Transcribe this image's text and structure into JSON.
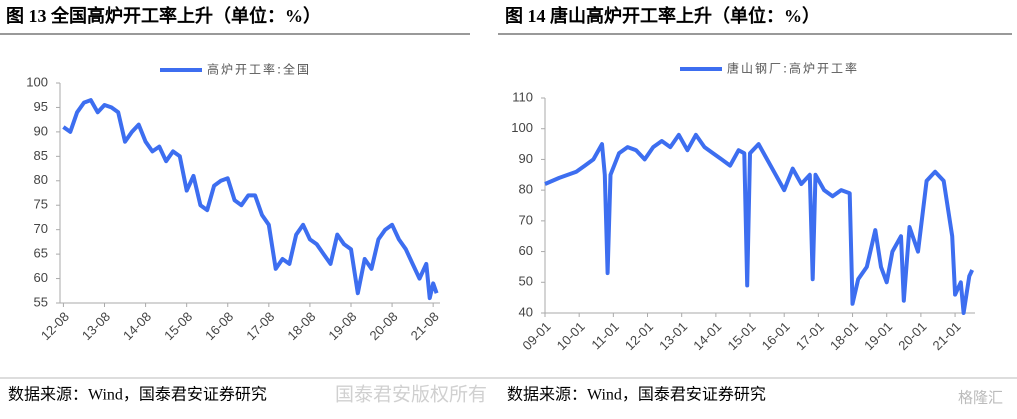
{
  "chart_data": [
    {
      "type": "line",
      "title": "图 13 全国高炉开工率上升（单位：%）",
      "source": "数据来源：Wind，国泰君安证券研究",
      "xlim": [
        "12-07",
        "21-10"
      ],
      "xticks": [
        "12-08",
        "13-08",
        "14-08",
        "15-08",
        "16-08",
        "17-08",
        "18-08",
        "19-08",
        "20-08",
        "21-08"
      ],
      "ylim": [
        55,
        100
      ],
      "yticks": [
        55,
        60,
        65,
        70,
        75,
        80,
        85,
        90,
        95,
        100
      ],
      "legend": "top",
      "series": [
        {
          "name": "高炉开工率:全国",
          "color": "#3d6ef0",
          "x": [
            "12-08",
            "12-10",
            "12-12",
            "13-02",
            "13-04",
            "13-06",
            "13-08",
            "13-10",
            "13-12",
            "14-02",
            "14-04",
            "14-06",
            "14-08",
            "14-10",
            "14-12",
            "15-02",
            "15-04",
            "15-06",
            "15-08",
            "15-10",
            "15-12",
            "16-02",
            "16-04",
            "16-06",
            "16-08",
            "16-10",
            "16-12",
            "17-02",
            "17-04",
            "17-06",
            "17-08",
            "17-10",
            "17-12",
            "18-02",
            "18-04",
            "18-06",
            "18-08",
            "18-10",
            "18-12",
            "19-02",
            "19-04",
            "19-06",
            "19-08",
            "19-10",
            "19-12",
            "20-02",
            "20-04",
            "20-06",
            "20-08",
            "20-10",
            "20-12",
            "21-02",
            "21-04",
            "21-06",
            "21-07",
            "21-08",
            "21-09"
          ],
          "values": [
            91,
            90,
            94,
            96,
            96.5,
            94,
            95.5,
            95,
            94,
            88,
            90,
            91.5,
            88,
            86,
            87,
            84,
            86,
            85,
            78,
            81,
            75,
            74,
            79,
            80,
            80.5,
            76,
            75,
            77,
            77,
            73,
            71,
            62,
            64,
            63,
            69,
            71,
            68,
            67,
            65,
            63,
            69,
            67,
            66,
            57,
            64,
            62,
            68,
            70,
            71,
            68,
            66,
            63,
            60,
            63,
            56,
            59,
            57
          ]
        }
      ]
    },
    {
      "type": "line",
      "title": "图 14 唐山高炉开工率上升（单位：%）",
      "source": "数据来源：Wind，国泰君安证券研究",
      "xlim": [
        "09-01",
        "21-08"
      ],
      "xticks": [
        "09-01",
        "10-01",
        "11-01",
        "12-01",
        "13-01",
        "14-01",
        "15-01",
        "16-01",
        "17-01",
        "18-01",
        "19-01",
        "20-01",
        "21-01"
      ],
      "ylim": [
        40,
        110
      ],
      "yticks": [
        40,
        50,
        60,
        70,
        80,
        90,
        100,
        110
      ],
      "legend": "top",
      "series": [
        {
          "name": "唐山钢厂:高炉开工率",
          "color": "#3d6ef0",
          "x": [
            "09-01",
            "09-06",
            "09-12",
            "10-03",
            "10-06",
            "10-09",
            "10-10",
            "10-11",
            "10-12",
            "11-03",
            "11-06",
            "11-09",
            "11-12",
            "12-03",
            "12-06",
            "12-09",
            "12-12",
            "13-03",
            "13-06",
            "13-09",
            "13-12",
            "14-03",
            "14-06",
            "14-09",
            "14-11",
            "14-12",
            "15-01",
            "15-04",
            "15-07",
            "15-10",
            "16-01",
            "16-04",
            "16-07",
            "16-10",
            "16-11",
            "16-12",
            "17-03",
            "17-06",
            "17-09",
            "17-12",
            "18-01",
            "18-03",
            "18-06",
            "18-09",
            "18-11",
            "19-01",
            "19-03",
            "19-06",
            "19-07",
            "19-09",
            "19-12",
            "20-03",
            "20-06",
            "20-09",
            "20-12",
            "21-01",
            "21-03",
            "21-04",
            "21-06",
            "21-07"
          ],
          "values": [
            82,
            84,
            86,
            88,
            90,
            95,
            85,
            53,
            85,
            92,
            94,
            93,
            90,
            94,
            96,
            94,
            98,
            93,
            98,
            94,
            92,
            90,
            88,
            93,
            92,
            49,
            92,
            95,
            90,
            85,
            80,
            87,
            82,
            85,
            51,
            85,
            80,
            78,
            80,
            79,
            43,
            51,
            55,
            67,
            55,
            50,
            60,
            65,
            44,
            68,
            60,
            83,
            86,
            83,
            65,
            46,
            50,
            40,
            52,
            54
          ]
        }
      ]
    }
  ],
  "watermark": "国泰君安版权所有",
  "logo": "格隆汇"
}
